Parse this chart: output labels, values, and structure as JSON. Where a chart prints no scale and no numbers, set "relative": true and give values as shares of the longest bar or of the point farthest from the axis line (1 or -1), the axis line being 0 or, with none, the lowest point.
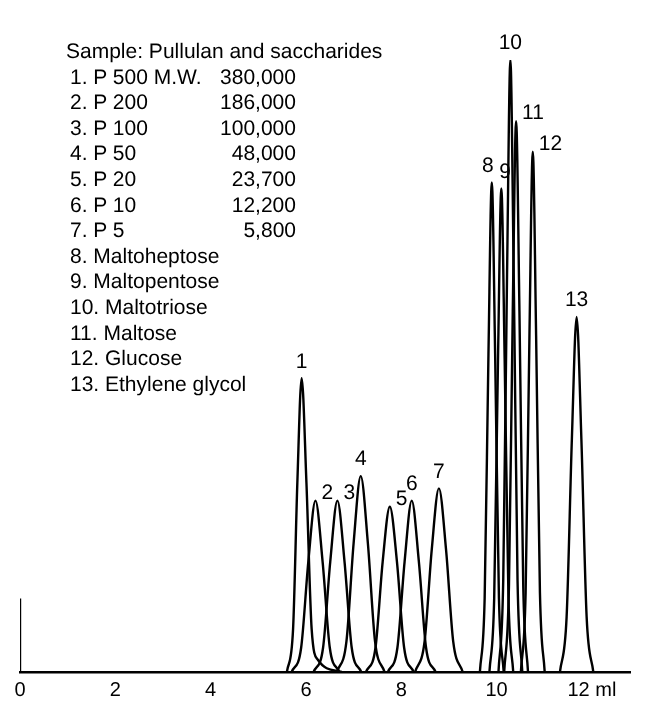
{
  "chart_data": {
    "type": "line",
    "title": "Sample: Pullulan and saccharides",
    "annotations": [
      "1. P 500 M.W.\t380,000",
      "2. P 200\t186,000",
      "3. P 100\t100,000",
      "4. P 50\t48,000",
      "5. P 20\t23,700",
      "6. P 10\t12,200",
      "7. P 5\t5,800",
      "8. Maltoheptose",
      "9. Maltopentose",
      "10. Maltotriose",
      "11. Maltose",
      "12. Glucose",
      "13. Ethylene glycol"
    ],
    "relative": true,
    "xlim": [
      0,
      12.8
    ],
    "xticks": [
      0,
      2,
      4,
      6,
      8,
      10,
      {
        "value": 12,
        "label": "12 ml"
      }
    ],
    "grid": false,
    "legend": false,
    "marker": "none",
    "line_style": "solid",
    "series": [
      {
        "color": "#000000",
        "x": [
          0,
          0
        ],
        "values": [
          0,
          0.12
        ]
      },
      {
        "name": "1",
        "color": "#000000",
        "x": [
          5.6,
          5.73,
          5.82,
          5.91,
          6.01,
          6.12,
          6.25,
          6.75
        ],
        "values": [
          0,
          0.07,
          0.31,
          0.48,
          0.31,
          0.07,
          0.02,
          0
        ]
      },
      {
        "name": "2",
        "color": "#000000",
        "x": [
          5.7,
          5.9,
          6.05,
          6.2,
          6.35,
          6.5,
          6.7
        ],
        "values": [
          0,
          0.04,
          0.18,
          0.28,
          0.18,
          0.04,
          0
        ]
      },
      {
        "name": "3",
        "color": "#000000",
        "x": [
          6.16,
          6.36,
          6.51,
          6.66,
          6.81,
          6.96,
          7.16
        ],
        "values": [
          0,
          0.04,
          0.18,
          0.28,
          0.18,
          0.04,
          0
        ]
      },
      {
        "name": "4",
        "color": "#000000",
        "x": [
          6.65,
          6.85,
          7.0,
          7.15,
          7.3,
          7.45,
          7.65
        ],
        "values": [
          0,
          0.05,
          0.21,
          0.32,
          0.21,
          0.05,
          0
        ]
      },
      {
        "name": "5",
        "color": "#000000",
        "x": [
          7.26,
          7.46,
          7.61,
          7.76,
          7.91,
          8.06,
          8.26
        ],
        "values": [
          0,
          0.04,
          0.18,
          0.27,
          0.18,
          0.04,
          0
        ]
      },
      {
        "name": "6",
        "color": "#000000",
        "x": [
          7.72,
          7.92,
          8.07,
          8.22,
          8.37,
          8.52,
          8.72
        ],
        "values": [
          0,
          0.04,
          0.18,
          0.28,
          0.18,
          0.04,
          0
        ]
      },
      {
        "name": "7",
        "color": "#000000",
        "x": [
          8.29,
          8.49,
          8.64,
          8.79,
          8.94,
          9.09,
          9.29
        ],
        "values": [
          0,
          0.05,
          0.2,
          0.3,
          0.2,
          0.05,
          0
        ]
      },
      {
        "name": "8",
        "color": "#000000",
        "x": [
          9.65,
          9.75,
          9.83,
          9.9,
          9.97,
          10.05,
          10.15
        ],
        "values": [
          0,
          0.12,
          0.52,
          0.8,
          0.52,
          0.12,
          0
        ]
      },
      {
        "name": "9",
        "color": "#000000",
        "x": [
          9.85,
          9.95,
          10.03,
          10.1,
          10.17,
          10.25,
          10.35
        ],
        "values": [
          0,
          0.12,
          0.51,
          0.79,
          0.51,
          0.12,
          0
        ]
      },
      {
        "name": "10",
        "color": "#000000",
        "x": [
          10.04,
          10.14,
          10.22,
          10.29,
          10.36,
          10.44,
          10.54
        ],
        "values": [
          0,
          0.15,
          0.65,
          1,
          0.65,
          0.15,
          0
        ]
      },
      {
        "name": "11",
        "color": "#000000",
        "x": [
          10.16,
          10.26,
          10.34,
          10.41,
          10.48,
          10.56,
          10.66
        ],
        "values": [
          0,
          0.14,
          0.59,
          0.9,
          0.59,
          0.14,
          0
        ]
      },
      {
        "name": "12",
        "color": "#000000",
        "x": [
          10.51,
          10.61,
          10.69,
          10.76,
          10.83,
          10.91,
          11.01
        ],
        "values": [
          0,
          0.13,
          0.55,
          0.85,
          0.55,
          0.13,
          0
        ]
      },
      {
        "name": "13",
        "color": "#000000",
        "x": [
          11.33,
          11.47,
          11.58,
          11.68,
          11.78,
          11.89,
          12.03
        ],
        "values": [
          0,
          0.09,
          0.38,
          0.58,
          0.38,
          0.09,
          0
        ]
      }
    ]
  }
}
